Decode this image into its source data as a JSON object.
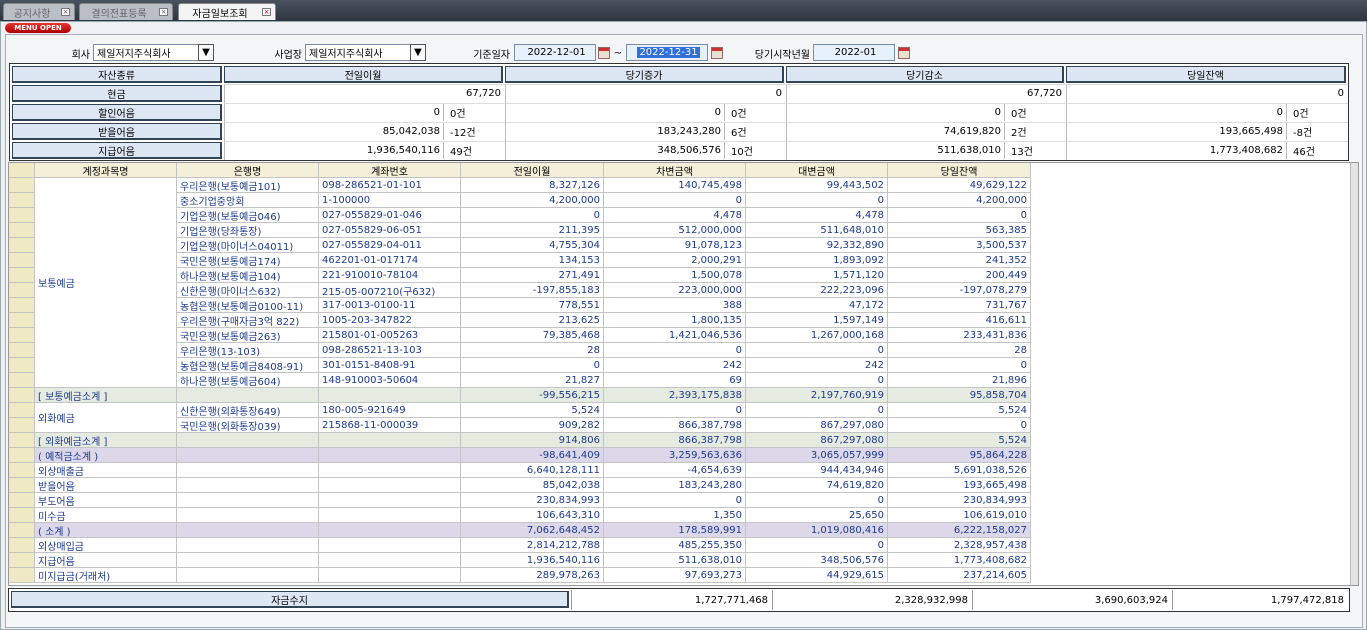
{
  "tabs": [
    "공지사항",
    "결의전표등록",
    "자금일보조회"
  ],
  "menu_button": "MENU OPEN",
  "filters": {
    "company": {
      "label": "회사",
      "value": "제일저지주식회사"
    },
    "site": {
      "label": "사업장",
      "value": "제일저지주식회사"
    },
    "base_date": {
      "label": "기준일자",
      "from": "2022-12-01",
      "separator": "~",
      "to": "2022-12-31"
    },
    "start_month": {
      "label": "당기시작년월",
      "value": "2022-01"
    }
  },
  "summary": {
    "headers": [
      "자산종류",
      "전일이월",
      "당기증가",
      "당기감소",
      "당일잔액"
    ],
    "rows": [
      {
        "label": "현금",
        "cells": [
          "67,720",
          "0",
          "67,720",
          "0"
        ]
      },
      {
        "label": "할인어음",
        "cells": [
          [
            "0",
            "0건"
          ],
          [
            "0",
            "0건"
          ],
          [
            "0",
            "0건"
          ],
          [
            "0",
            "0건"
          ]
        ]
      },
      {
        "label": "받을어음",
        "cells": [
          [
            "85,042,038",
            "-12건"
          ],
          [
            "183,243,280",
            "6건"
          ],
          [
            "74,619,820",
            "2건"
          ],
          [
            "193,665,498",
            "-8건"
          ]
        ]
      },
      {
        "label": "지급어음",
        "cells": [
          [
            "1,936,540,116",
            "49건"
          ],
          [
            "348,506,576",
            "10건"
          ],
          [
            "511,638,010",
            "13건"
          ],
          [
            "1,773,408,682",
            "46건"
          ]
        ]
      }
    ]
  },
  "detail": {
    "headers": [
      "계정과목명",
      "은행명",
      "계좌번호",
      "전일이월",
      "차변금액",
      "대변금액",
      "당일잔액"
    ],
    "rows": [
      {
        "account": "보통예금",
        "rows": [
          [
            "우리은행(보통예금101)",
            "098-286521-01-101",
            "8,327,126",
            "140,745,498",
            "99,443,502",
            "49,629,122"
          ],
          [
            "중소기업중앙회",
            "1-100000",
            "4,200,000",
            "0",
            "0",
            "4,200,000"
          ],
          [
            "기업은행(보통예금046)",
            "027-055829-01-046",
            "0",
            "4,478",
            "4,478",
            "0"
          ],
          [
            "기업은행(당좌통장)",
            "027-055829-06-051",
            "211,395",
            "512,000,000",
            "511,648,010",
            "563,385"
          ],
          [
            "기업은행(마이너스04011)",
            "027-055829-04-011",
            "4,755,304",
            "91,078,123",
            "92,332,890",
            "3,500,537"
          ],
          [
            "국민은행(보통예금174)",
            "462201-01-017174",
            "134,153",
            "2,000,291",
            "1,893,092",
            "241,352"
          ],
          [
            "하나은행(보통예금104)",
            "221-910010-78104",
            "271,491",
            "1,500,078",
            "1,571,120",
            "200,449"
          ],
          [
            "신한은행(마이너스632)",
            "215-05-007210(구632)",
            "-197,855,183",
            "223,000,000",
            "222,223,096",
            "-197,078,279"
          ],
          [
            "농협은행(보통예금0100-11)",
            "317-0013-0100-11",
            "778,551",
            "388",
            "47,172",
            "731,767"
          ],
          [
            "우리은행(구매자금3억 822)",
            "1005-203-347822",
            "213,625",
            "1,800,135",
            "1,597,149",
            "416,611"
          ],
          [
            "국민은행(보통예금263)",
            "215801-01-005263",
            "79,385,468",
            "1,421,046,536",
            "1,267,000,168",
            "233,431,836"
          ],
          [
            "우리은행(13-103)",
            "098-286521-13-103",
            "28",
            "0",
            "0",
            "28"
          ],
          [
            "농협은행(보통예금8408-91)",
            "301-0151-8408-91",
            "0",
            "242",
            "242",
            "0"
          ],
          [
            "하나은행(보통예금604)",
            "148-910003-50604",
            "21,827",
            "69",
            "0",
            "21,896"
          ]
        ]
      },
      {
        "account": "[ 보통예금소계 ]",
        "values": [
          "-99,556,215",
          "2,393,175,838",
          "2,197,760,919",
          "95,858,704"
        ]
      },
      {
        "account": "외화예금",
        "rows": [
          [
            "신한은행(외화통장649)",
            "180-005-921649",
            "5,524",
            "0",
            "0",
            "5,524"
          ],
          [
            "국민은행(외화통장039)",
            "215868-11-000039",
            "909,282",
            "866,387,798",
            "867,297,080",
            "0"
          ]
        ]
      },
      {
        "account": "[ 외화예금소계 ]",
        "values": [
          "914,806",
          "866,387,798",
          "867,297,080",
          "5,524"
        ]
      },
      {
        "account": "( 예적금소계 )",
        "values": [
          "-98,641,409",
          "3,259,563,636",
          "3,065,057,999",
          "95,864,228"
        ]
      },
      {
        "account": "외상매출금",
        "values": [
          "6,640,128,111",
          "-4,654,639",
          "944,434,946",
          "5,691,038,526"
        ]
      },
      {
        "account": "받을어음",
        "values": [
          "85,042,038",
          "183,243,280",
          "74,619,820",
          "193,665,498"
        ]
      },
      {
        "account": "부도어음",
        "values": [
          "230,834,993",
          "0",
          "0",
          "230,834,993"
        ]
      },
      {
        "account": "미수금",
        "values": [
          "106,643,310",
          "1,350",
          "25,650",
          "106,619,010"
        ]
      },
      {
        "account": "( 소계 )",
        "values": [
          "7,062,648,452",
          "178,589,991",
          "1,019,080,416",
          "6,222,158,027"
        ]
      },
      {
        "account": "외상매입금",
        "values": [
          "2,814,212,788",
          "485,255,350",
          "0",
          "2,328,957,438"
        ]
      },
      {
        "account": "지급어음",
        "values": [
          "1,936,540,116",
          "511,638,010",
          "348,506,576",
          "1,773,408,682"
        ]
      },
      {
        "account": "미지급금(거래처)",
        "values": [
          "289,978,263",
          "97,693,273",
          "44,929,615",
          "237,214,605"
        ]
      }
    ]
  },
  "footer": {
    "label": "자금수지",
    "values": [
      "1,727,771,468",
      "2,328,932,998",
      "3,690,603,924",
      "1,797,472,818"
    ]
  }
}
